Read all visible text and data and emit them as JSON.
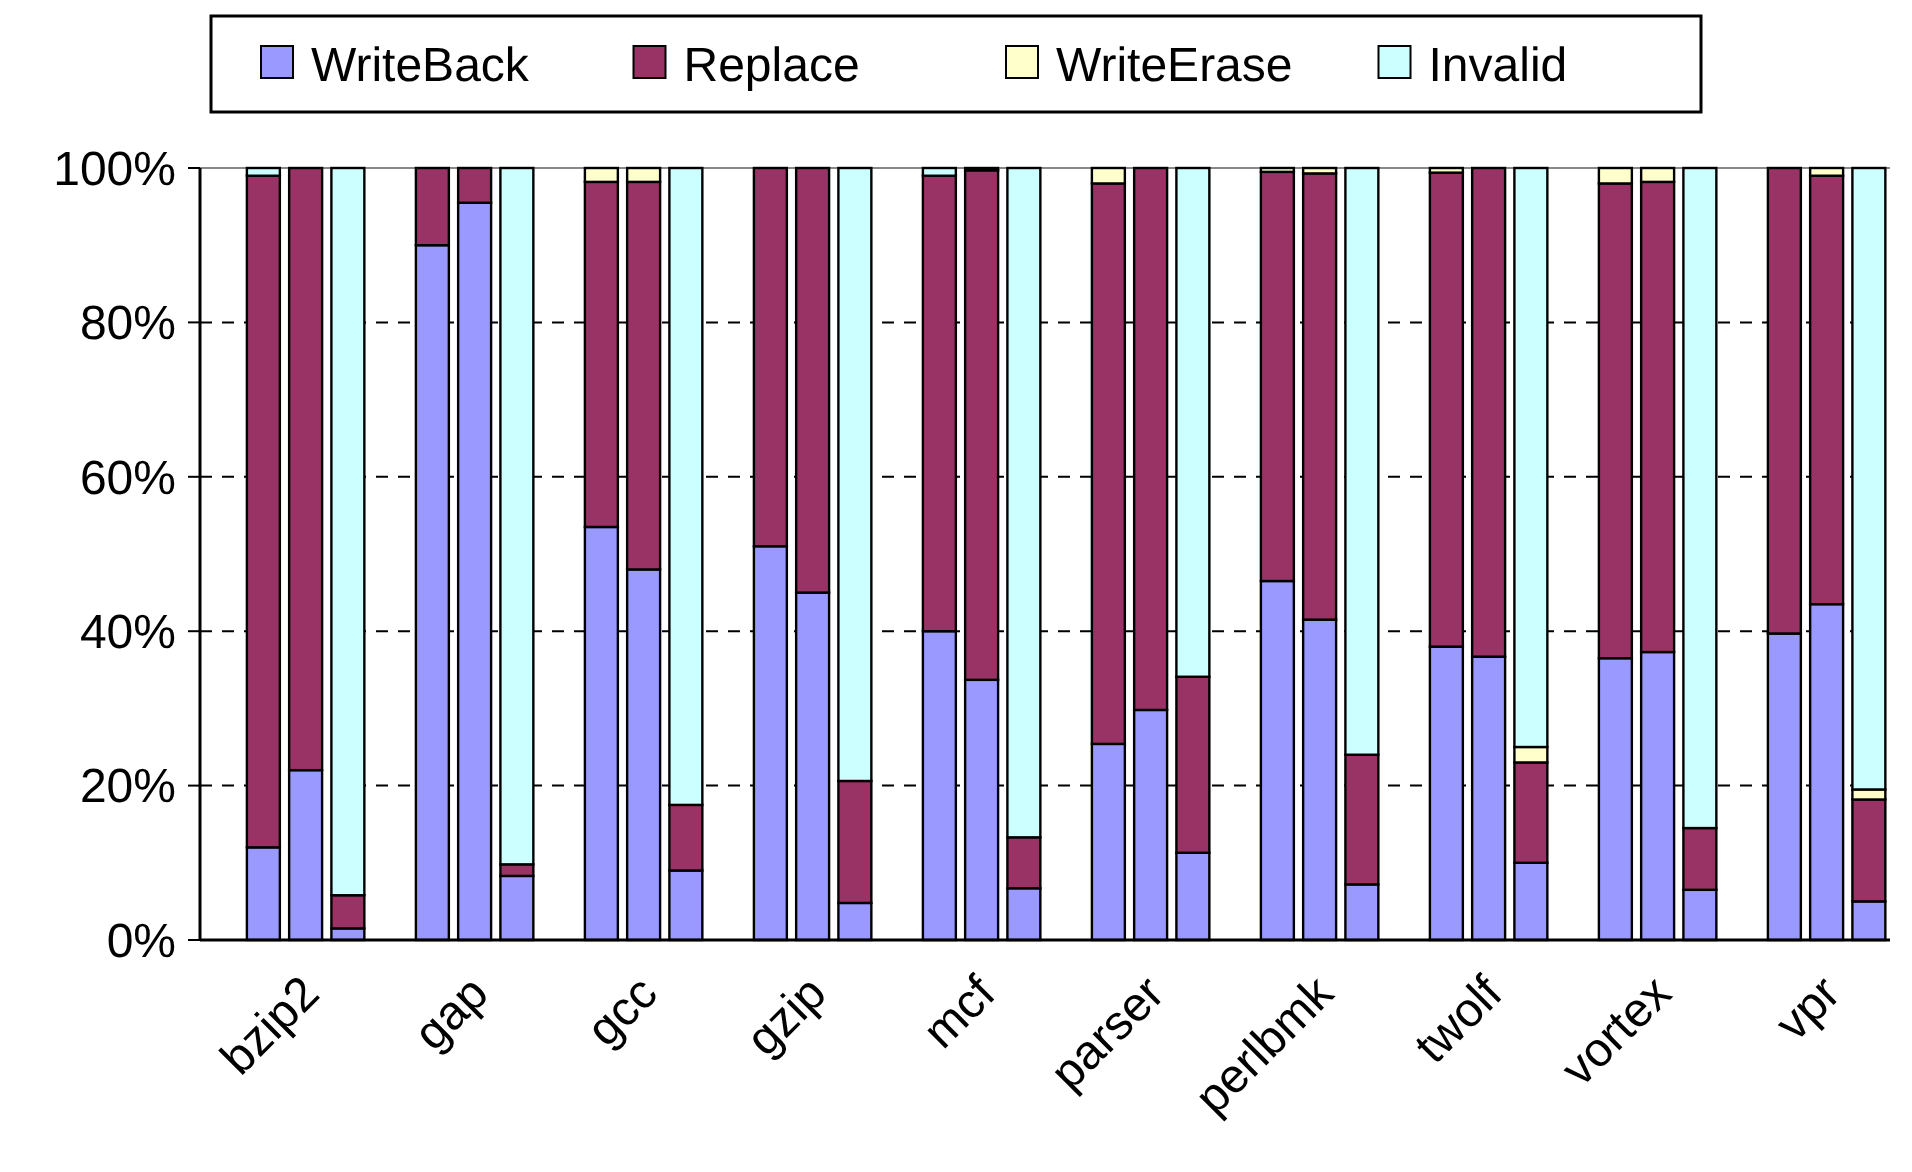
{
  "chart_data": {
    "type": "bar",
    "stacked": true,
    "grid": "y",
    "legend": "top",
    "categories": [
      null,
      null,
      "bzip2",
      null,
      null,
      null,
      "gap",
      null,
      null,
      null,
      "gcc",
      null,
      null,
      null,
      "gzip",
      null,
      null,
      null,
      "mcf",
      null,
      null,
      null,
      "parser",
      null,
      null,
      null,
      "perlbmk",
      null,
      null,
      null,
      "twolf",
      null,
      null,
      null,
      "vortex",
      null,
      null,
      null,
      "vpr",
      null
    ],
    "series": [
      {
        "name": "WriteBack",
        "color": "#9999ff",
        "values": [
          null,
          12,
          22,
          1.5,
          null,
          90,
          95.5,
          8.3,
          null,
          53.5,
          48,
          9,
          null,
          51,
          45,
          4.8,
          null,
          40,
          33.7,
          6.7,
          null,
          25.4,
          29.8,
          11.3,
          null,
          46.5,
          41.5,
          7.2,
          null,
          38,
          36.7,
          10,
          null,
          36.5,
          37.3,
          6.5,
          null,
          39.7,
          43.5,
          5
        ]
      },
      {
        "name": "Replace",
        "color": "#993366",
        "values": [
          null,
          87,
          78,
          4.3,
          null,
          10,
          4.5,
          1.5,
          null,
          44.7,
          50.2,
          8.5,
          null,
          49,
          55,
          15.8,
          null,
          59,
          66,
          6.6,
          null,
          72.6,
          70.2,
          22.8,
          null,
          53,
          57.8,
          16.8,
          null,
          61.4,
          63.3,
          13,
          null,
          61.5,
          60.9,
          8,
          null,
          60.3,
          55.5,
          13.2
        ]
      },
      {
        "name": "WriteErase",
        "color": "#ffffcc",
        "values": [
          null,
          0,
          0,
          0,
          null,
          0,
          0,
          0,
          null,
          1.8,
          1.8,
          0,
          null,
          0,
          0,
          0,
          null,
          0,
          0.3,
          0,
          null,
          2,
          0,
          0,
          null,
          0.5,
          0.7,
          0,
          null,
          0.6,
          0,
          2,
          null,
          2,
          1.8,
          0,
          null,
          0,
          1,
          1.3
        ]
      },
      {
        "name": "Invalid",
        "color": "#ccffff",
        "values": [
          null,
          1,
          0,
          94.2,
          null,
          0,
          0,
          90.2,
          null,
          0,
          0,
          82.5,
          null,
          0,
          0,
          79.4,
          null,
          1,
          0,
          86.7,
          null,
          0,
          0,
          65.9,
          null,
          0,
          0,
          76,
          null,
          0,
          0,
          75,
          null,
          0,
          0,
          85.5,
          null,
          0,
          0,
          80.5
        ]
      }
    ],
    "ylim": [
      0,
      100
    ],
    "yticks": [
      {
        "value": 0,
        "label": "0%"
      },
      {
        "value": 20,
        "label": "20%"
      },
      {
        "value": 40,
        "label": "40%"
      },
      {
        "value": 60,
        "label": "60%"
      },
      {
        "value": 80,
        "label": "80%"
      },
      {
        "value": 100,
        "label": "100%"
      }
    ]
  }
}
